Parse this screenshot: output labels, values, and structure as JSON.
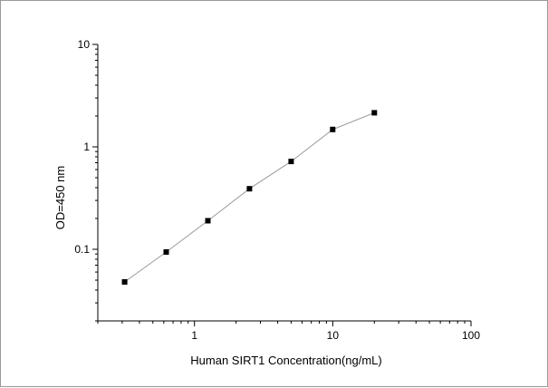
{
  "chart_data": {
    "type": "scatter",
    "xlabel": "Human SIRT1 Concentration(ng/mL)",
    "ylabel": "OD=450 nm",
    "x_scale": "log",
    "y_scale": "log",
    "xlim": [
      0.2,
      100
    ],
    "ylim": [
      0.02,
      10
    ],
    "x_ticks": [
      {
        "value": 1,
        "label": "1"
      },
      {
        "value": 10,
        "label": "10"
      },
      {
        "value": 100,
        "label": "100"
      }
    ],
    "y_ticks": [
      {
        "value": 0.1,
        "label": "0.1"
      },
      {
        "value": 1,
        "label": "1"
      },
      {
        "value": 10,
        "label": "10"
      }
    ],
    "grid": false,
    "series": [
      {
        "x": [
          0.3125,
          0.625,
          1.25,
          2.5,
          5,
          10,
          20
        ],
        "y": [
          0.048,
          0.094,
          0.19,
          0.39,
          0.72,
          1.48,
          2.15
        ],
        "marker": "square",
        "color": "#000000",
        "line_color": "#9a9a9a"
      }
    ]
  }
}
